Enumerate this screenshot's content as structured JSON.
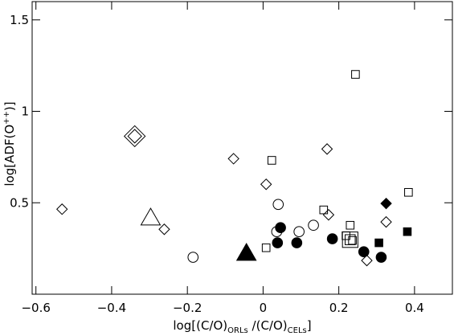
{
  "chart_data": {
    "type": "scatter",
    "x_label": [
      "log[(C/O)",
      "ORLs",
      " /(C/O)",
      "CELs",
      "]"
    ],
    "y_label": [
      "log[ADF(O",
      "++",
      ")]"
    ],
    "xlim": [
      -0.61,
      0.5
    ],
    "ylim": [
      0,
      1.6
    ],
    "xticks": [
      {
        "value": -0.6,
        "label": "−0.6"
      },
      {
        "value": -0.4,
        "label": "−0.4"
      },
      {
        "value": -0.2,
        "label": "−0.2"
      },
      0,
      0.2,
      0.4
    ],
    "yticks": [
      0.5,
      1,
      1.5
    ],
    "series": [
      {
        "marker": "diamond",
        "filled": false,
        "color": "#000000",
        "x": [
          -0.531,
          -0.261,
          -0.078,
          0.008,
          0.169,
          0.173,
          0.274,
          0.325
        ],
        "y": [
          0.465,
          0.355,
          0.741,
          0.601,
          0.794,
          0.434,
          0.184,
          0.395
        ]
      },
      {
        "marker": "diamond",
        "filled": true,
        "color": "#000000",
        "x": [
          0.325
        ],
        "y": [
          0.496
        ]
      },
      {
        "marker": "square",
        "filled": false,
        "color": "#000000",
        "x": [
          0.023,
          0.244,
          0.008,
          0.16,
          0.23,
          0.219,
          0.384,
          0.236
        ],
        "y": [
          0.732,
          1.202,
          0.254,
          0.461,
          0.377,
          0.32,
          0.557,
          0.294
        ]
      },
      {
        "marker": "square",
        "filled": true,
        "color": "#000000",
        "x": [
          0.306,
          0.381
        ],
        "y": [
          0.281,
          0.342
        ]
      },
      {
        "marker": "circle",
        "filled": false,
        "color": "#000000",
        "x": [
          -0.185,
          0.04,
          0.036,
          0.095,
          0.133
        ],
        "y": [
          0.202,
          0.491,
          0.342,
          0.342,
          0.377
        ]
      },
      {
        "marker": "circle",
        "filled": true,
        "color": "#000000",
        "x": [
          0.046,
          0.038,
          0.089,
          0.183,
          0.266,
          0.312
        ],
        "y": [
          0.364,
          0.281,
          0.281,
          0.303,
          0.232,
          0.202
        ]
      },
      {
        "marker": "double-diamond",
        "filled": false,
        "color": "#000000",
        "x": [
          -0.339
        ],
        "y": [
          0.864
        ]
      },
      {
        "marker": "double-square",
        "filled": false,
        "color": "#000000",
        "x": [
          0.23
        ],
        "y": [
          0.298
        ]
      },
      {
        "marker": "triangle",
        "filled": false,
        "color": "#000000",
        "x": [
          -0.297
        ],
        "y": [
          0.417
        ]
      },
      {
        "marker": "triangle",
        "filled": true,
        "color": "#000000",
        "x": [
          -0.044
        ],
        "y": [
          0.224
        ]
      }
    ]
  }
}
